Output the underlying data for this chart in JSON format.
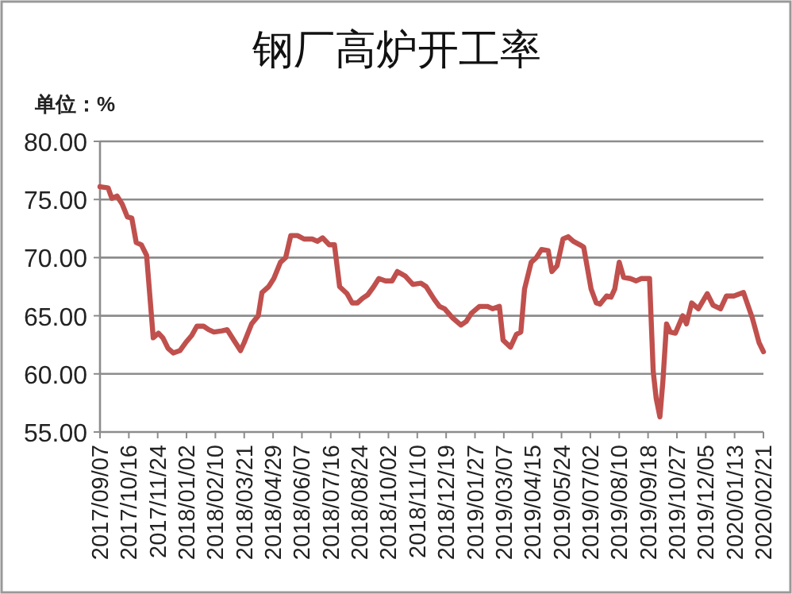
{
  "chart_data": {
    "type": "line",
    "title": "钢厂高炉开工率",
    "ylabel": "单位：%",
    "grid": "y",
    "color": "#c0504d",
    "x": [
      "2017-09-07",
      "2017-09-18",
      "2017-09-23",
      "2017-09-30",
      "2017-10-07",
      "2017-10-14",
      "2017-10-20",
      "2017-10-26",
      "2017-11-02",
      "2017-11-09",
      "2017-11-18",
      "2017-11-25",
      "2017-12-01",
      "2017-12-08",
      "2017-12-15",
      "2017-12-24",
      "2018-01-01",
      "2018-01-09",
      "2018-01-16",
      "2018-01-25",
      "2018-02-01",
      "2018-02-08",
      "2018-02-19",
      "2018-02-26",
      "2018-03-05",
      "2018-03-16",
      "2018-03-21",
      "2018-03-31",
      "2018-04-09",
      "2018-04-14",
      "2018-04-23",
      "2018-04-30",
      "2018-05-09",
      "2018-05-16",
      "2018-05-23",
      "2018-06-01",
      "2018-06-10",
      "2018-06-21",
      "2018-06-28",
      "2018-07-05",
      "2018-07-14",
      "2018-07-21",
      "2018-07-28",
      "2018-08-07",
      "2018-08-14",
      "2018-08-21",
      "2018-08-28",
      "2018-09-04",
      "2018-09-12",
      "2018-09-19",
      "2018-09-28",
      "2018-10-07",
      "2018-10-14",
      "2018-10-25",
      "2018-11-04",
      "2018-11-15",
      "2018-11-22",
      "2018-12-03",
      "2018-12-10",
      "2018-12-17",
      "2018-12-28",
      "2019-01-08",
      "2019-01-15",
      "2019-01-22",
      "2019-02-02",
      "2019-02-13",
      "2019-02-20",
      "2019-03-01",
      "2019-03-06",
      "2019-03-16",
      "2019-03-24",
      "2019-03-30",
      "2019-04-04",
      "2019-04-13",
      "2019-04-20",
      "2019-04-27",
      "2019-05-06",
      "2019-05-11",
      "2019-05-18",
      "2019-05-26",
      "2019-06-02",
      "2019-06-09",
      "2019-06-18",
      "2019-06-23",
      "2019-07-03",
      "2019-07-10",
      "2019-07-15",
      "2019-07-24",
      "2019-07-30",
      "2019-08-04",
      "2019-08-10",
      "2019-08-16",
      "2019-08-25",
      "2019-09-02",
      "2019-09-09",
      "2019-09-20",
      "2019-09-25",
      "2019-09-29",
      "2019-10-04",
      "2019-10-08",
      "2019-10-13",
      "2019-10-18",
      "2019-10-25",
      "2019-11-04",
      "2019-11-09",
      "2019-11-16",
      "2019-11-25",
      "2019-12-07",
      "2019-12-15",
      "2019-12-25",
      "2020-01-02",
      "2020-01-12",
      "2020-01-25",
      "2020-02-06",
      "2020-02-15",
      "2020-02-21"
    ],
    "values": [
      76.1,
      76.0,
      75.1,
      75.3,
      74.6,
      73.5,
      73.4,
      71.3,
      71.1,
      70.2,
      63.1,
      63.5,
      63.1,
      62.2,
      61.8,
      62.0,
      62.7,
      63.3,
      64.1,
      64.1,
      63.8,
      63.6,
      63.7,
      63.8,
      63.1,
      62.0,
      62.7,
      64.3,
      65.0,
      67.0,
      67.5,
      68.2,
      69.6,
      70.0,
      71.9,
      71.9,
      71.6,
      71.6,
      71.4,
      71.7,
      71.1,
      71.1,
      67.5,
      66.9,
      66.1,
      66.1,
      66.5,
      66.8,
      67.5,
      68.2,
      68.0,
      68.0,
      68.8,
      68.4,
      67.7,
      67.8,
      67.5,
      66.4,
      65.8,
      65.6,
      64.8,
      64.2,
      64.5,
      65.2,
      65.8,
      65.8,
      65.6,
      65.8,
      62.9,
      62.3,
      63.4,
      63.6,
      67.3,
      69.6,
      70.0,
      70.7,
      70.6,
      68.8,
      69.3,
      71.6,
      71.8,
      71.4,
      71.1,
      70.9,
      67.3,
      66.1,
      66.0,
      66.7,
      66.6,
      67.3,
      69.6,
      68.3,
      68.2,
      68.0,
      68.2,
      68.2,
      60.2,
      57.9,
      56.3,
      59.3,
      64.3,
      63.6,
      63.5,
      65.0,
      64.3,
      66.1,
      65.6,
      66.9,
      65.9,
      65.6,
      66.7,
      66.7,
      67.0,
      64.8,
      62.7,
      61.9
    ],
    "xlim": [
      "2017-09-07",
      "2020-02-21"
    ],
    "xticks": [
      {
        "value": "2017-09-07",
        "label": "2017/09/07"
      },
      {
        "value": "2017-10-16",
        "label": "2017/10/16"
      },
      {
        "value": "2017-11-24",
        "label": "2017/11/24"
      },
      {
        "value": "2018-01-02",
        "label": "2018/01/02"
      },
      {
        "value": "2018-02-10",
        "label": "2018/02/10"
      },
      {
        "value": "2018-03-21",
        "label": "2018/03/21"
      },
      {
        "value": "2018-04-29",
        "label": "2018/04/29"
      },
      {
        "value": "2018-06-07",
        "label": "2018/06/07"
      },
      {
        "value": "2018-07-16",
        "label": "2018/07/16"
      },
      {
        "value": "2018-08-24",
        "label": "2018/08/24"
      },
      {
        "value": "2018-10-02",
        "label": "2018/10/02"
      },
      {
        "value": "2018-11-10",
        "label": "2018/11/10"
      },
      {
        "value": "2018-12-19",
        "label": "2018/12/19"
      },
      {
        "value": "2019-01-27",
        "label": "2019/01/27"
      },
      {
        "value": "2019-03-07",
        "label": "2019/03/07"
      },
      {
        "value": "2019-04-15",
        "label": "2019/04/15"
      },
      {
        "value": "2019-05-24",
        "label": "2019/05/24"
      },
      {
        "value": "2019-07-02",
        "label": "2019/07/02"
      },
      {
        "value": "2019-08-10",
        "label": "2019/08/10"
      },
      {
        "value": "2019-09-18",
        "label": "2019/09/18"
      },
      {
        "value": "2019-10-27",
        "label": "2019/10/27"
      },
      {
        "value": "2019-12-05",
        "label": "2019/12/05"
      },
      {
        "value": "2020-01-13",
        "label": "2020/01/13"
      },
      {
        "value": "2020-02-21",
        "label": "2020/02/21"
      }
    ],
    "ylim": [
      55,
      80
    ],
    "yticks": [
      {
        "value": 55,
        "label": "55.00"
      },
      {
        "value": 60,
        "label": "60.00"
      },
      {
        "value": 65,
        "label": "65.00"
      },
      {
        "value": 70,
        "label": "70.00"
      },
      {
        "value": 75,
        "label": "75.00"
      },
      {
        "value": 80,
        "label": "80.00"
      }
    ]
  }
}
